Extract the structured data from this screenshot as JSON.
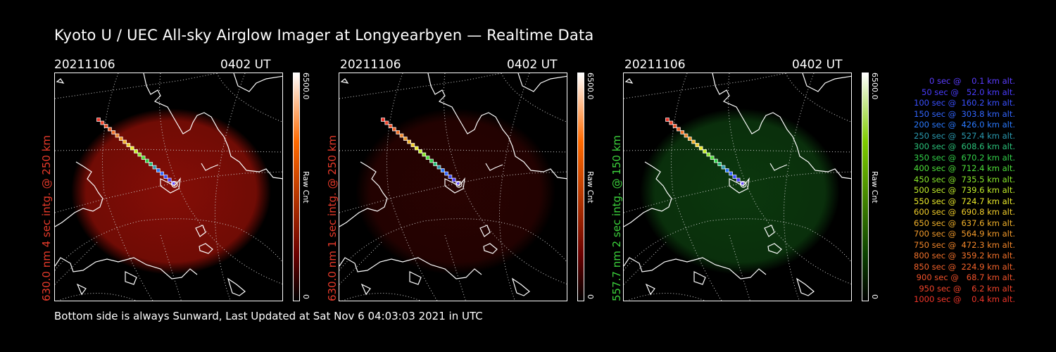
{
  "title": "Kyoto U / UEC All-sky Airglow Imager at Longyearbyen — Realtime Data",
  "footer": "Bottom side is always Sunward, Last Updated at Sat Nov  6 04:03:03 2021 in UTC",
  "panels": [
    {
      "date": "20211106",
      "time": "0402 UT",
      "side_label": "630.0 nm 4 sec intg. @ 250 km",
      "side_color": "#e83a2a",
      "glow": "#b01208",
      "glow_opacity": 0.75,
      "cbar_max": "6500.0",
      "cbar_min": "0",
      "cbar_unit": "Raw Cnt",
      "cbar_top": "#ffffff",
      "cbar_mid": "#ff6a00",
      "cbar_low": "#6a0000"
    },
    {
      "date": "20211106",
      "time": "0402 UT",
      "side_label": "630.0 nm 1 sec intg. @ 250 km",
      "side_color": "#e83a2a",
      "glow": "#3a0402",
      "glow_opacity": 0.7,
      "cbar_max": "6500.0",
      "cbar_min": "0",
      "cbar_unit": "Raw Cnt",
      "cbar_top": "#ffffff",
      "cbar_mid": "#ff6a00",
      "cbar_low": "#6a0000"
    },
    {
      "date": "20211106",
      "time": "0402 UT",
      "side_label": "557.7 nm 2 sec intg. @ 150 km",
      "side_color": "#3cd23c",
      "glow": "#0f4a12",
      "glow_opacity": 0.75,
      "cbar_max": "6500.0",
      "cbar_min": "0",
      "cbar_unit": "Raw Cnt",
      "cbar_top": "#ffffff",
      "cbar_mid": "#7fcc00",
      "cbar_low": "#0a4000"
    }
  ],
  "legend": [
    {
      "text": "   0 sec @    0.1 km alt.",
      "color": "#5a3cff"
    },
    {
      "text": "  50 sec @   52.0 km alt.",
      "color": "#4a3cff"
    },
    {
      "text": " 100 sec @  160.2 km alt.",
      "color": "#3a50ff"
    },
    {
      "text": " 150 sec @  303.8 km alt.",
      "color": "#3266ff"
    },
    {
      "text": " 200 sec @  426.0 km alt.",
      "color": "#2a7aff"
    },
    {
      "text": " 250 sec @  527.4 km alt.",
      "color": "#2a9ab0"
    },
    {
      "text": " 300 sec @  608.6 km alt.",
      "color": "#2ac27a"
    },
    {
      "text": " 350 sec @  670.2 km alt.",
      "color": "#32d24a"
    },
    {
      "text": " 400 sec @  712.4 km alt.",
      "color": "#4ee03a"
    },
    {
      "text": " 450 sec @  735.5 km alt.",
      "color": "#8aea2a"
    },
    {
      "text": " 500 sec @  739.6 km alt.",
      "color": "#c2ee2a"
    },
    {
      "text": " 550 sec @  724.7 km alt.",
      "color": "#eaea2a"
    },
    {
      "text": " 600 sec @  690.8 km alt.",
      "color": "#f2ce2a"
    },
    {
      "text": " 650 sec @  637.6 km alt.",
      "color": "#f2b22a"
    },
    {
      "text": " 700 sec @  564.9 km alt.",
      "color": "#f29a2a"
    },
    {
      "text": " 750 sec @  472.3 km alt.",
      "color": "#f2862a"
    },
    {
      "text": " 800 sec @  359.2 km alt.",
      "color": "#f2722a"
    },
    {
      "text": " 850 sec @  224.9 km alt.",
      "color": "#f2622a"
    },
    {
      "text": " 900 sec @   68.7 km alt.",
      "color": "#f2522a"
    },
    {
      "text": " 950 sec @    6.2 km alt.",
      "color": "#f2442a"
    },
    {
      "text": "1000 sec @    0.4 km alt.",
      "color": "#f2362a"
    }
  ]
}
